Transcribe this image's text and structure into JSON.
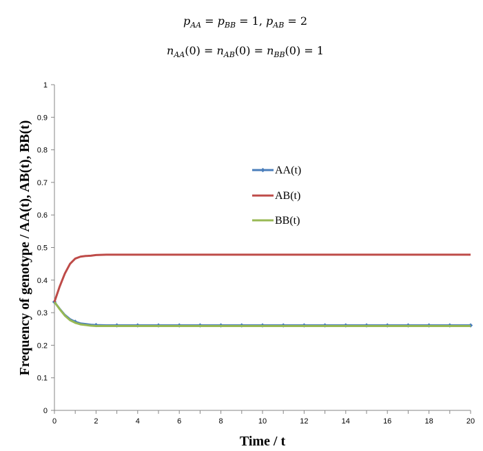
{
  "chart_data": {
    "type": "line",
    "title_lines": [
      {
        "parts": [
          {
            "t": "p",
            "i": true
          },
          {
            "t": "AA",
            "sub": true,
            "i": true
          },
          {
            "t": " = "
          },
          {
            "t": "p",
            "i": true
          },
          {
            "t": "BB",
            "sub": true,
            "i": true
          },
          {
            "t": " = 1, "
          },
          {
            "t": "p",
            "i": true
          },
          {
            "t": "AB",
            "sub": true,
            "i": true
          },
          {
            "t": " = 2"
          }
        ]
      },
      {
        "parts": [
          {
            "t": "n",
            "i": true
          },
          {
            "t": "AA",
            "sub": true,
            "i": true
          },
          {
            "t": "(0) = "
          },
          {
            "t": "n",
            "i": true
          },
          {
            "t": "AB",
            "sub": true,
            "i": true
          },
          {
            "t": "(0) = "
          },
          {
            "t": "n",
            "i": true
          },
          {
            "t": "BB",
            "sub": true,
            "i": true
          },
          {
            "t": "(0) = 1"
          }
        ]
      }
    ],
    "xlabel": "Time / t",
    "ylabel": "Frequency of genotype / AA(t), AB(t), BB(t)",
    "xlim": [
      0,
      20
    ],
    "ylim": [
      0,
      1
    ],
    "xticks": [
      0,
      2,
      4,
      6,
      8,
      10,
      12,
      14,
      16,
      18,
      20
    ],
    "yticks": [
      0,
      0.1,
      0.2,
      0.3,
      0.4,
      0.5,
      0.6,
      0.7,
      0.8,
      0.9,
      1
    ],
    "ytick_labels": [
      "0",
      "0.1",
      "0.2",
      "0.3",
      "0.4",
      "0.5",
      "0.6",
      "0.7",
      "0.8",
      "0.9",
      "1"
    ],
    "grid": false,
    "legend_position": "center",
    "x": [
      0,
      0.25,
      0.5,
      0.75,
      1,
      1.25,
      1.5,
      1.75,
      2,
      2.5,
      3,
      3.5,
      4,
      5,
      6,
      7,
      8,
      9,
      10,
      11,
      12,
      13,
      14,
      15,
      16,
      17,
      18,
      19,
      20
    ],
    "series": [
      {
        "name": "AA(t)",
        "color": "#4a7ebb",
        "marker": "diamond",
        "marker_x": [
          0,
          1,
          2,
          3,
          4,
          5,
          6,
          7,
          8,
          9,
          10,
          11,
          12,
          13,
          14,
          15,
          16,
          17,
          18,
          19,
          20
        ],
        "values": [
          0.333,
          0.312,
          0.293,
          0.28,
          0.272,
          0.267,
          0.265,
          0.263,
          0.262,
          0.261,
          0.261,
          0.261,
          0.261,
          0.261,
          0.261,
          0.261,
          0.261,
          0.261,
          0.261,
          0.261,
          0.261,
          0.261,
          0.261,
          0.261,
          0.261,
          0.261,
          0.261,
          0.261,
          0.261
        ]
      },
      {
        "name": "AB(t)",
        "color": "#be4b48",
        "values": [
          0.333,
          0.38,
          0.42,
          0.45,
          0.466,
          0.472,
          0.474,
          0.475,
          0.477,
          0.478,
          0.478,
          0.478,
          0.478,
          0.478,
          0.478,
          0.478,
          0.478,
          0.478,
          0.478,
          0.478,
          0.478,
          0.478,
          0.478,
          0.478,
          0.478,
          0.478,
          0.478,
          0.478,
          0.478
        ]
      },
      {
        "name": "BB(t)",
        "color": "#98b954",
        "values": [
          0.333,
          0.311,
          0.291,
          0.277,
          0.269,
          0.264,
          0.262,
          0.26,
          0.259,
          0.259,
          0.259,
          0.259,
          0.259,
          0.259,
          0.259,
          0.259,
          0.259,
          0.259,
          0.259,
          0.259,
          0.259,
          0.259,
          0.259,
          0.259,
          0.259,
          0.259,
          0.259,
          0.259,
          0.259
        ]
      }
    ]
  }
}
